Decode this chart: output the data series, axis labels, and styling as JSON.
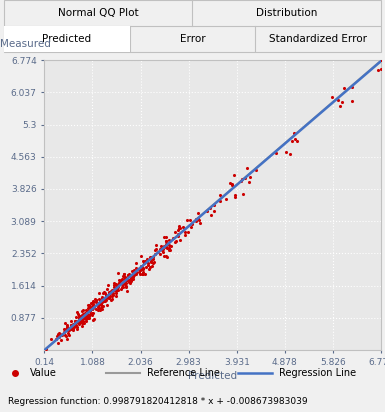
{
  "title_top_left": "Normal QQ Plot",
  "title_top_right": "Distribution",
  "tab_left": "Predicted",
  "tab_mid": "Error",
  "tab_right": "Standardized Error",
  "xlabel": "Predicted",
  "ylabel": "Measured",
  "xlim": [
    0.14,
    6.774
  ],
  "ylim": [
    0.14,
    6.774
  ],
  "xticks": [
    0.14,
    1.088,
    2.036,
    2.983,
    3.931,
    4.878,
    5.826,
    6.774
  ],
  "yticks": [
    0.877,
    1.614,
    2.352,
    3.089,
    3.826,
    4.563,
    5.3,
    6.037,
    6.774
  ],
  "regression_slope": 0.998791820412818,
  "regression_intercept": -0.008673983039,
  "regression_label": "Regression function: 0.998791820412818 * x + -0.008673983039",
  "dot_color": "#cc0000",
  "ref_line_color": "#999999",
  "reg_line_color": "#4472c4",
  "plot_bg": "#e8e8e8",
  "outer_bg": "#f0f0f0",
  "grid_color": "#ffffff",
  "grid_style": "dotted",
  "border_color": "#c0c0c0",
  "tick_color": "#5a6b8a",
  "label_color": "#5a6b8a",
  "seed": 42,
  "n_points": 400
}
